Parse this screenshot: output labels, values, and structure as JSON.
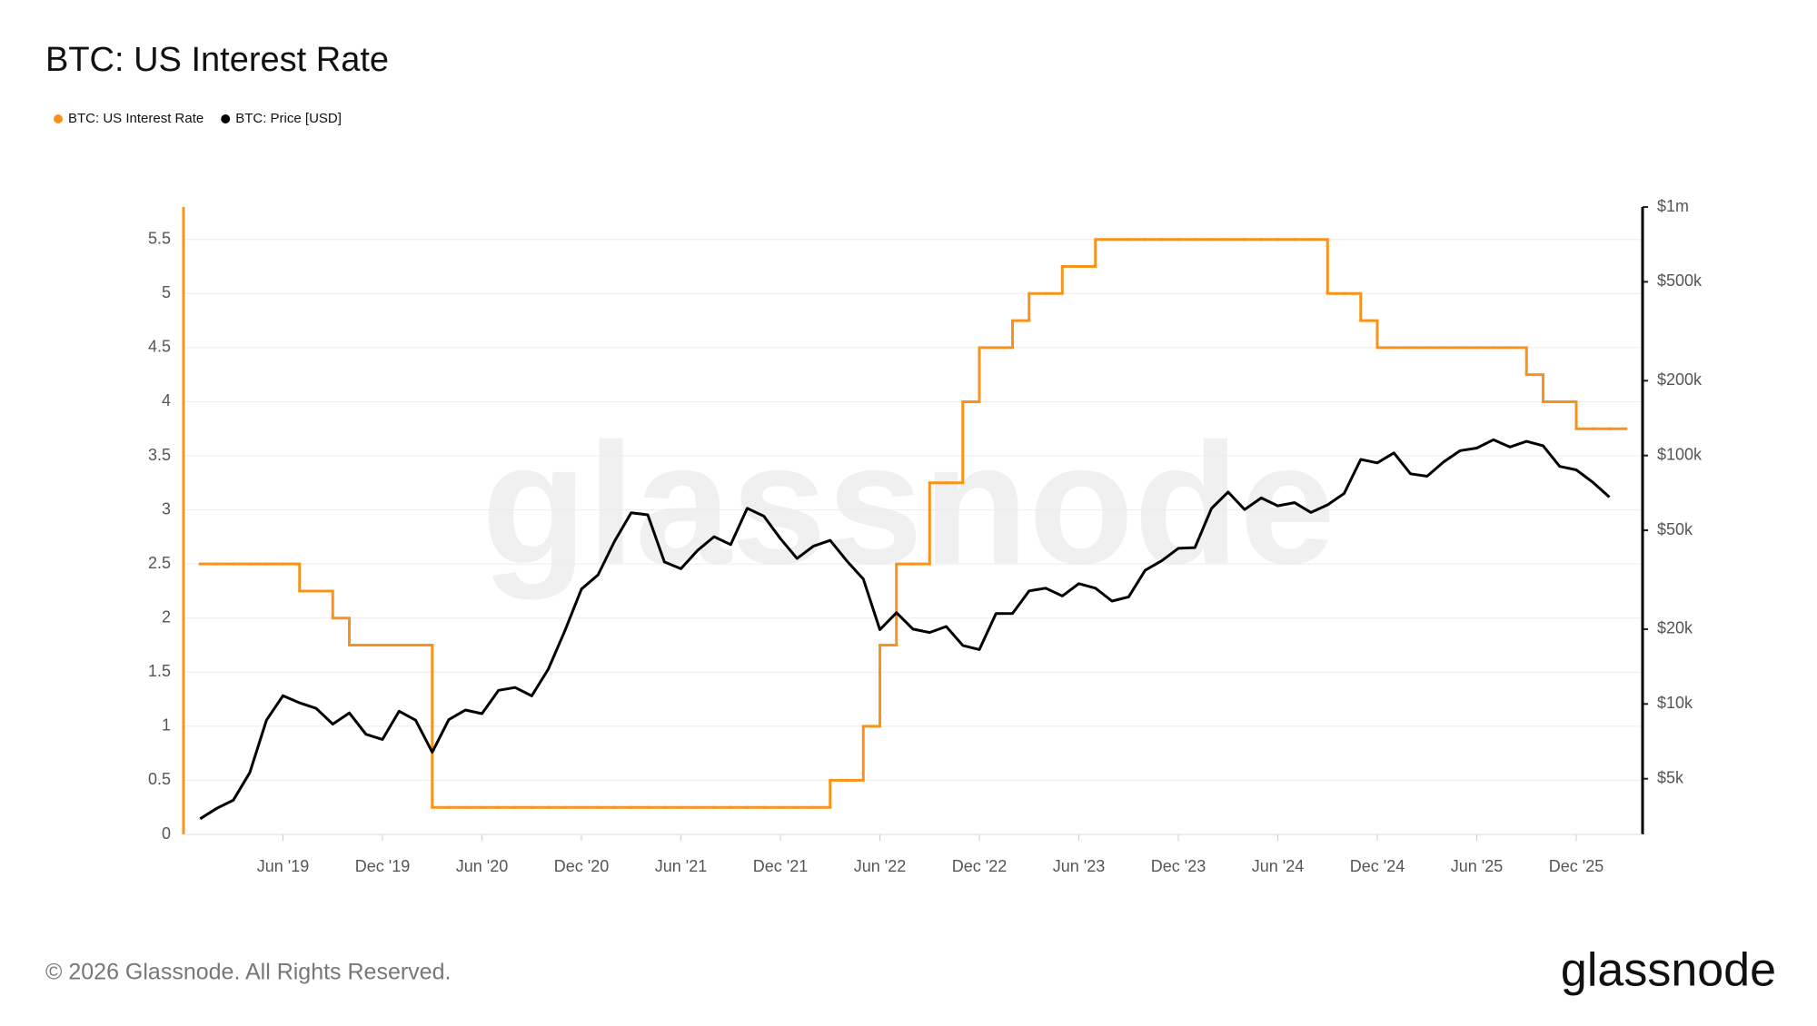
{
  "chart_data": {
    "type": "line",
    "title": "BTC: US Interest Rate",
    "watermark": "glassnode",
    "footer": "© 2026 Glassnode. All Rights Reserved.",
    "logo": "glassnode",
    "legend": "top-left",
    "grid": true,
    "x": [
      "2019-01",
      "2019-02",
      "2019-03",
      "2019-04",
      "2019-05",
      "2019-06",
      "2019-07",
      "2019-08",
      "2019-09",
      "2019-10",
      "2019-11",
      "2019-12",
      "2020-01",
      "2020-02",
      "2020-03",
      "2020-04",
      "2020-05",
      "2020-06",
      "2020-07",
      "2020-08",
      "2020-09",
      "2020-10",
      "2020-11",
      "2020-12",
      "2021-01",
      "2021-02",
      "2021-03",
      "2021-04",
      "2021-05",
      "2021-06",
      "2021-07",
      "2021-08",
      "2021-09",
      "2021-10",
      "2021-11",
      "2021-12",
      "2022-01",
      "2022-02",
      "2022-03",
      "2022-04",
      "2022-05",
      "2022-06",
      "2022-07",
      "2022-08",
      "2022-09",
      "2022-10",
      "2022-11",
      "2022-12",
      "2023-01",
      "2023-02",
      "2023-03",
      "2023-04",
      "2023-05",
      "2023-06",
      "2023-07",
      "2023-08",
      "2023-09",
      "2023-10",
      "2023-11",
      "2023-12",
      "2024-01",
      "2024-02",
      "2024-03",
      "2024-04",
      "2024-05",
      "2024-06",
      "2024-07",
      "2024-08",
      "2024-09",
      "2024-10",
      "2024-11",
      "2024-12",
      "2025-01",
      "2025-02",
      "2025-03",
      "2025-04",
      "2025-05",
      "2025-06",
      "2025-07",
      "2025-08",
      "2025-09",
      "2025-10",
      "2025-11",
      "2025-12",
      "2026-01",
      "2026-02"
    ],
    "xlim": [
      "2018-12",
      "2026-04"
    ],
    "xticks": [
      {
        "value": "2019-06",
        "label": "Jun '19"
      },
      {
        "value": "2019-12",
        "label": "Dec '19"
      },
      {
        "value": "2020-06",
        "label": "Jun '20"
      },
      {
        "value": "2020-12",
        "label": "Dec '20"
      },
      {
        "value": "2021-06",
        "label": "Jun '21"
      },
      {
        "value": "2021-12",
        "label": "Dec '21"
      },
      {
        "value": "2022-06",
        "label": "Jun '22"
      },
      {
        "value": "2022-12",
        "label": "Dec '22"
      },
      {
        "value": "2023-06",
        "label": "Jun '23"
      },
      {
        "value": "2023-12",
        "label": "Dec '23"
      },
      {
        "value": "2024-06",
        "label": "Jun '24"
      },
      {
        "value": "2024-12",
        "label": "Dec '24"
      },
      {
        "value": "2025-06",
        "label": "Jun '25"
      },
      {
        "value": "2025-12",
        "label": "Dec '25"
      }
    ],
    "ylim": [
      0,
      5.8
    ],
    "yticks": [
      0,
      0.5,
      1,
      1.5,
      2,
      2.5,
      3,
      3.5,
      4,
      4.5,
      5,
      5.5
    ],
    "y2lim": [
      2985,
      1000000
    ],
    "y2scale": "log",
    "y2ticks": [
      {
        "value": 5000,
        "label": "$5k"
      },
      {
        "value": 10000,
        "label": "$10k"
      },
      {
        "value": 20000,
        "label": "$20k"
      },
      {
        "value": 50000,
        "label": "$50k"
      },
      {
        "value": 100000,
        "label": "$100k"
      },
      {
        "value": 200000,
        "label": "$200k"
      },
      {
        "value": 500000,
        "label": "$500k"
      },
      {
        "value": 1000000,
        "label": "$1m"
      }
    ],
    "series": [
      {
        "name": "BTC: US Interest Rate",
        "color": "#f7931a",
        "axis": "y",
        "step": true,
        "values": [
          2.5,
          2.5,
          2.5,
          2.5,
          2.5,
          2.5,
          2.25,
          2.25,
          2.0,
          1.75,
          1.75,
          1.75,
          1.75,
          1.75,
          0.25,
          0.25,
          0.25,
          0.25,
          0.25,
          0.25,
          0.25,
          0.25,
          0.25,
          0.25,
          0.25,
          0.25,
          0.25,
          0.25,
          0.25,
          0.25,
          0.25,
          0.25,
          0.25,
          0.25,
          0.25,
          0.25,
          0.25,
          0.25,
          0.5,
          0.5,
          1.0,
          1.75,
          2.5,
          2.5,
          3.25,
          3.25,
          4.0,
          4.5,
          4.5,
          4.75,
          5.0,
          5.0,
          5.25,
          5.25,
          5.5,
          5.5,
          5.5,
          5.5,
          5.5,
          5.5,
          5.5,
          5.5,
          5.5,
          5.5,
          5.5,
          5.5,
          5.5,
          5.5,
          5.0,
          5.0,
          4.75,
          4.5,
          4.5,
          4.5,
          4.5,
          4.5,
          4.5,
          4.5,
          4.5,
          4.5,
          4.25,
          4.0,
          4.0,
          3.75,
          3.75,
          3.75
        ]
      },
      {
        "name": "BTC: Price [USD]",
        "color": "#000000",
        "axis": "y2",
        "step": false,
        "values": [
          3450,
          3800,
          4100,
          5300,
          8600,
          10800,
          10100,
          9600,
          8300,
          9200,
          7550,
          7200,
          9350,
          8600,
          6400,
          8650,
          9450,
          9140,
          11350,
          11650,
          10780,
          13800,
          19700,
          29000,
          33100,
          45200,
          58800,
          57700,
          37300,
          35000,
          41500,
          47100,
          43800,
          61300,
          57000,
          46300,
          38500,
          43200,
          45500,
          37700,
          31800,
          19900,
          23300,
          20000,
          19400,
          20500,
          17200,
          16550,
          23100,
          23150,
          28500,
          29250,
          27200,
          30500,
          29250,
          25950,
          26970,
          34500,
          37700,
          42300,
          42600,
          61200,
          71300,
          60600,
          67500,
          62700,
          64600,
          59000,
          63300,
          70300,
          96400,
          93400,
          102400,
          84400,
          82500,
          94200,
          104600,
          107100,
          115700,
          108200,
          114000,
          109500,
          90400,
          87500,
          78000,
          68000
        ]
      }
    ]
  }
}
